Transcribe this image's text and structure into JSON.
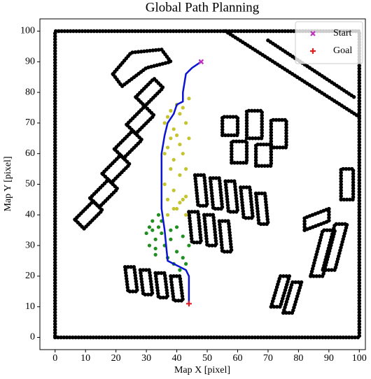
{
  "chart_data": {
    "type": "scatter",
    "title": "Global Path Planning",
    "xlabel": "Map X [pixel]",
    "ylabel": "Map Y [pixel]",
    "xlim": [
      -5,
      102
    ],
    "ylim": [
      -4,
      104
    ],
    "xticks": [
      0,
      10,
      20,
      30,
      40,
      50,
      60,
      70,
      80,
      90,
      100
    ],
    "yticks": [
      0,
      10,
      20,
      30,
      40,
      50,
      60,
      70,
      80,
      90,
      100
    ],
    "grid": false,
    "legend": "upper right",
    "series": [
      {
        "color": "#000000",
        "mode": "dots-line",
        "x": [
          0,
          100,
          100,
          0,
          0,
          null,
          56,
          100,
          null,
          70,
          99,
          null,
          19,
          25,
          35,
          38,
          30,
          22,
          19,
          null,
          26.5,
          32.5,
          35.5,
          29.5,
          26.5,
          null,
          23.5,
          29.5,
          32.5,
          26.5,
          23.5,
          null,
          19.5,
          25.5,
          28.5,
          22.5,
          19.5,
          null,
          15.5,
          21.5,
          24.5,
          18.5,
          15.5,
          null,
          11.5,
          17.5,
          20.5,
          14.5,
          11.5,
          null,
          6.5,
          12.5,
          15.5,
          9.5,
          6.5,
          null,
          46,
          49,
          50,
          47,
          46,
          null,
          51,
          54,
          55,
          52,
          51,
          null,
          56,
          59,
          60,
          57,
          56,
          null,
          61,
          64,
          65,
          62,
          61,
          null,
          66,
          69,
          70,
          67,
          66,
          null,
          44,
          47,
          48,
          45,
          44,
          null,
          49,
          52,
          53,
          50,
          49,
          null,
          54,
          57,
          58,
          55,
          54,
          null,
          23,
          26,
          27,
          24,
          23,
          null,
          28,
          31,
          32,
          29,
          28,
          null,
          33,
          36,
          37,
          34,
          33,
          null,
          38,
          41,
          42,
          39,
          38,
          null,
          55,
          60,
          60,
          55,
          55,
          null,
          58,
          63,
          63,
          58,
          58,
          null,
          63,
          68,
          68,
          63,
          63,
          null,
          66,
          71,
          71,
          66,
          66,
          null,
          71,
          76,
          76,
          71,
          71,
          null,
          84,
          88,
          92,
          88,
          84,
          null,
          88,
          92,
          96,
          92,
          88,
          null,
          82,
          90,
          90,
          82,
          82,
          null,
          71,
          74,
          77,
          74,
          71,
          null,
          75,
          78,
          81,
          78,
          75,
          null,
          94,
          98,
          98,
          94,
          94
        ],
        "y": [
          0,
          0,
          100,
          100,
          0,
          null,
          100,
          72,
          null,
          97,
          78,
          null,
          86,
          93,
          94,
          90,
          88,
          82,
          86,
          null,
          78.5,
          84.5,
          81.5,
          75.5,
          78.5,
          null,
          69.5,
          75.5,
          72.5,
          66.5,
          69.5,
          null,
          61.5,
          67.5,
          64.5,
          58.5,
          61.5,
          null,
          53.5,
          59.5,
          56.5,
          50.5,
          53.5,
          null,
          45.5,
          51.5,
          48.5,
          42.5,
          45.5,
          null,
          38.5,
          44.5,
          41.5,
          35.5,
          38.5,
          null,
          53,
          53,
          43,
          43,
          53,
          null,
          52,
          52,
          42,
          42,
          52,
          null,
          51,
          51,
          41,
          41,
          51,
          null,
          49,
          49,
          39,
          39,
          49,
          null,
          47,
          47,
          37,
          37,
          47,
          null,
          41,
          41,
          31,
          31,
          41,
          null,
          40,
          40,
          30,
          30,
          40,
          null,
          38,
          38,
          28,
          28,
          38,
          null,
          23,
          23,
          15,
          15,
          23,
          null,
          22,
          22,
          14,
          14,
          22,
          null,
          21,
          21,
          13,
          13,
          21,
          null,
          20,
          20,
          12,
          12,
          20,
          null,
          66,
          66,
          72,
          72,
          66,
          null,
          57,
          57,
          64,
          64,
          57,
          null,
          65,
          65,
          74,
          74,
          65,
          null,
          56,
          56,
          63,
          63,
          56,
          null,
          62,
          62,
          71,
          71,
          62,
          null,
          20,
          20,
          35,
          35,
          20,
          null,
          22,
          22,
          37,
          37,
          22,
          null,
          35,
          38,
          42,
          39,
          35,
          null,
          10,
          10,
          20,
          20,
          10,
          null,
          8,
          8,
          18,
          18,
          8,
          null,
          45,
          45,
          55,
          55,
          45
        ]
      },
      {
        "color": "#c4c42e",
        "mode": "points",
        "x": [
          36,
          36,
          36,
          37,
          37,
          37,
          38,
          38,
          38,
          39,
          39,
          39,
          40,
          40,
          40,
          41,
          41,
          41,
          42,
          42,
          42,
          43,
          43,
          43,
          44,
          44,
          37,
          39,
          41,
          43
        ],
        "y": [
          70,
          60,
          50,
          72,
          62,
          45,
          74,
          65,
          55,
          68,
          58,
          48,
          76,
          66,
          42,
          73,
          63,
          53,
          75,
          60,
          45,
          70,
          55,
          40,
          78,
          65,
          40,
          42,
          44,
          46
        ]
      },
      {
        "color": "#1f8f1f",
        "mode": "points",
        "x": [
          30,
          31,
          32,
          33,
          34,
          35,
          31,
          33,
          35,
          32,
          34,
          36,
          38,
          40,
          42,
          38,
          40,
          42,
          39,
          41,
          43,
          37,
          33,
          44
        ],
        "y": [
          34,
          36,
          38,
          32,
          36,
          34,
          30,
          29,
          38,
          35,
          40,
          30,
          32,
          28,
          26,
          35,
          36,
          33,
          24,
          22,
          24,
          26,
          27,
          30
        ]
      },
      {
        "color": "#0a14d2",
        "mode": "line",
        "x": [
          48,
          45,
          43,
          42,
          42,
          40,
          39,
          37,
          36,
          35,
          35,
          36,
          37,
          43,
          44,
          44
        ],
        "y": [
          90,
          88,
          86,
          80,
          77,
          76,
          73,
          70,
          66,
          60,
          42,
          35,
          25,
          22,
          20,
          11
        ]
      },
      {
        "name": "Start",
        "color": "#c030c0",
        "mode": "marker-x",
        "x": [
          48
        ],
        "y": [
          90
        ]
      },
      {
        "name": "Goal",
        "color": "#e02020",
        "mode": "marker-plus",
        "x": [
          44
        ],
        "y": [
          11
        ]
      }
    ]
  }
}
